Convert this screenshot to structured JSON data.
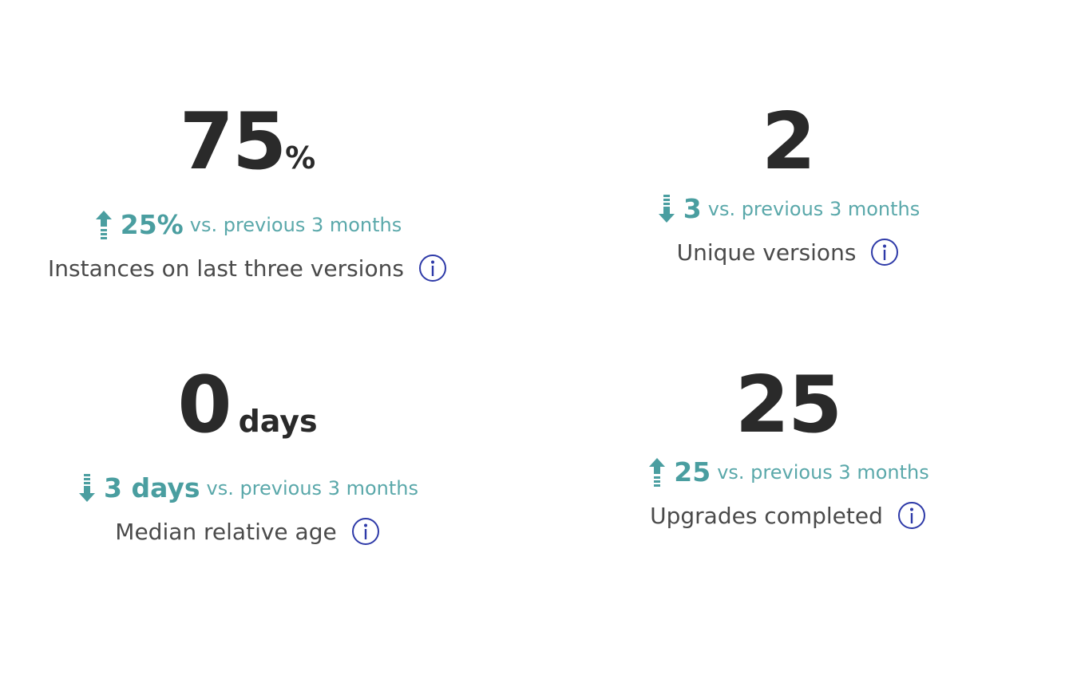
{
  "colors": {
    "value": "#2a2a2a",
    "delta": "#4a9ea0",
    "label": "#4a4a4a",
    "info": "#2e3aa8"
  },
  "metrics": [
    {
      "value": "75",
      "unit": "%",
      "trend": "up",
      "delta": "25%",
      "comparison": "vs. previous 3 months",
      "label": "Instances on last three versions",
      "info_icon": "info-icon"
    },
    {
      "value": "2",
      "unit": "",
      "trend": "down",
      "delta": "3",
      "comparison": "vs. previous 3 months",
      "label": "Unique versions",
      "info_icon": "info-icon"
    },
    {
      "value": "0",
      "unit": "days",
      "trend": "down",
      "delta": "3 days",
      "comparison": "vs. previous 3 months",
      "label": "Median relative age",
      "info_icon": "info-icon"
    },
    {
      "value": "25",
      "unit": "",
      "trend": "up",
      "delta": "25",
      "comparison": "vs. previous 3 months",
      "label": "Upgrades completed",
      "info_icon": "info-icon"
    }
  ]
}
